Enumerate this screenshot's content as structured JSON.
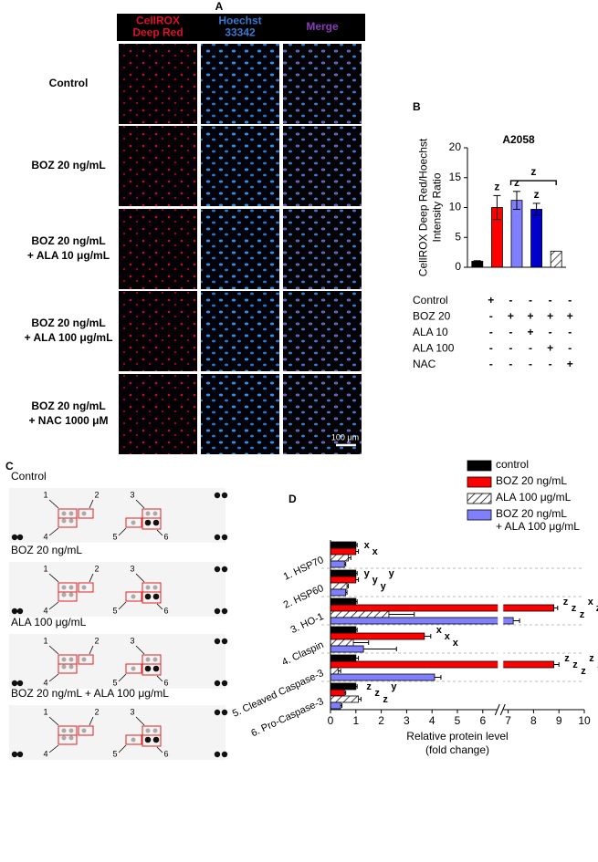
{
  "panel_a": {
    "label": "A",
    "headers": [
      [
        "CellROX",
        "Deep Red"
      ],
      [
        "Hoechst",
        "33342"
      ],
      [
        "Merge"
      ]
    ],
    "rows": [
      [
        "Control"
      ],
      [
        "BOZ 20 ng/mL"
      ],
      [
        "BOZ 20 ng/mL",
        "+ ALA 10 μg/mL"
      ],
      [
        "BOZ 20 ng/mL",
        "+ ALA 100 μg/mL"
      ],
      [
        "BOZ 20 ng/mL",
        "+ NAC 1000 μM"
      ]
    ],
    "scale_bar": "100 μm"
  },
  "panel_c": {
    "label": "C",
    "blots": [
      "Control",
      "BOZ 20 ng/mL",
      "ALA 100 μg/mL",
      "BOZ 20 ng/mL + ALA 100 μg/mL"
    ],
    "spot_labels": [
      "1",
      "2",
      "3",
      "4",
      "5",
      "6"
    ]
  },
  "chart_data": [
    {
      "type": "bar",
      "panel": "B",
      "title": "A2058",
      "y_label": [
        "CellROX Deep Red/Hoechst",
        "Intensity Ratio"
      ],
      "categories": [
        null,
        null,
        null,
        null,
        null
      ],
      "values": [
        1,
        10,
        11.2,
        9.7,
        2.7
      ],
      "errors": [
        0.1,
        2,
        1.5,
        1,
        0
      ],
      "colors": [
        "#000000",
        "#ff0000",
        "#8080ff",
        "#0000cc",
        "#ffffff"
      ],
      "significance": [
        null,
        "z",
        "z",
        "z",
        null
      ],
      "bracket_label": "z",
      "ylim": [
        0,
        20
      ],
      "yticks": [
        0,
        5,
        10,
        15,
        20
      ],
      "treatments": [
        {
          "name": "Control",
          "signs": [
            "+",
            "-",
            "-",
            "-",
            "-"
          ]
        },
        {
          "name": "BOZ 20",
          "signs": [
            "-",
            "+",
            "+",
            "+",
            "+"
          ]
        },
        {
          "name": "ALA 10",
          "signs": [
            "-",
            "-",
            "+",
            "-",
            "-"
          ]
        },
        {
          "name": "ALA 100",
          "signs": [
            "-",
            "-",
            "-",
            "+",
            "-"
          ]
        },
        {
          "name": "NAC",
          "signs": [
            "-",
            "-",
            "-",
            "-",
            "+"
          ]
        }
      ]
    },
    {
      "type": "hbar",
      "panel": "D",
      "x_label": [
        "Relative protein level",
        "(fold change)"
      ],
      "categories": [
        "1. HSP70",
        "2. HSP60",
        "3. HO-1",
        "4. Claspin",
        "5. Cleaved Caspase-3",
        "6. Pro-Caspase-3"
      ],
      "series": [
        {
          "name": "control",
          "color": "#000000",
          "values": [
            1,
            1,
            1,
            1,
            1,
            1
          ],
          "errors": [
            0.05,
            0.05,
            0.05,
            0.05,
            0.1,
            0.05
          ]
        },
        {
          "name": "BOZ 20 ng/mL",
          "color": "#ff0000",
          "values": [
            1,
            1,
            8.8,
            3.7,
            8.8,
            0.55
          ],
          "errors": [
            0.1,
            0.1,
            0.15,
            0.25,
            0.2,
            0.05
          ]
        },
        {
          "name": "ALA 100 μg/mL",
          "color": "#ffffff",
          "pattern": "hatch",
          "values": [
            0.7,
            0.65,
            2.3,
            0.9,
            0.3,
            1.1
          ],
          "errors": [
            0.1,
            0.05,
            1.0,
            0.6,
            0.1,
            0.1
          ]
        },
        {
          "name": "BOZ 20 ng/mL + ALA 100 μg/mL",
          "color": "#8080ff",
          "values": [
            0.55,
            0.6,
            7.2,
            1.3,
            4.1,
            0.4
          ],
          "errors": [
            0.05,
            0.05,
            0.25,
            1.3,
            0.25,
            0.05
          ]
        }
      ],
      "significance": [
        [
          "x",
          "x"
        ],
        [
          "y",
          "y",
          "y",
          "y"
        ],
        [
          "z",
          "z",
          "z",
          "x",
          "z"
        ],
        [
          "x",
          "x",
          "x"
        ],
        [
          "z",
          "z",
          "z",
          "z",
          "z"
        ],
        [
          "z",
          "z",
          "z",
          "y"
        ]
      ],
      "axis_break": 6.7,
      "xlim": [
        0,
        10
      ],
      "xticks": [
        0,
        1,
        2,
        3,
        4,
        5,
        6,
        7,
        8,
        9,
        10
      ]
    }
  ]
}
